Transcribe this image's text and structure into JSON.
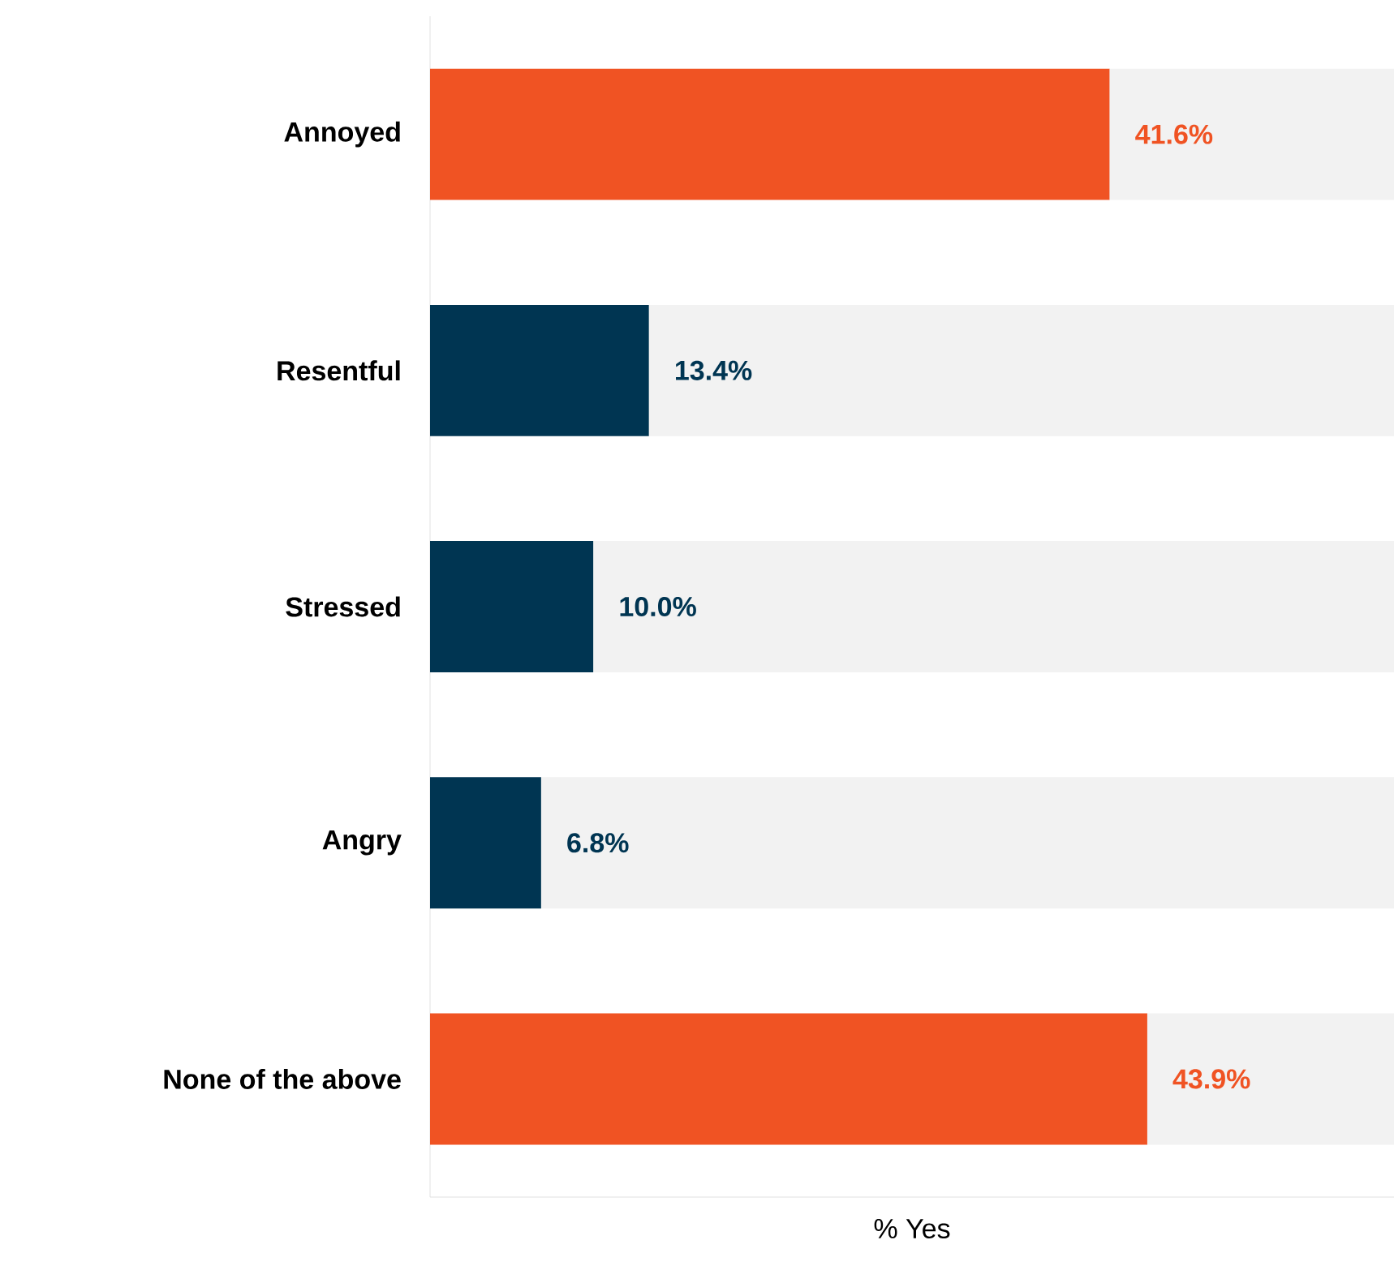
{
  "chart_data": {
    "type": "bar",
    "orientation": "horizontal",
    "stacked": true,
    "xlabel": "% Yes",
    "categories": [
      "Annoyed",
      "Resentful",
      "Stressed",
      "Angry",
      "None of the above"
    ],
    "xlim": [
      0,
      59
    ],
    "series": [
      {
        "colors": [
          "#f05323",
          "#003552",
          "#003552",
          "#003552",
          "#f05323"
        ],
        "values": [
          41.6,
          13.4,
          10.0,
          6.8,
          43.9
        ],
        "value_labels": [
          "41.6%",
          "13.4%",
          "10.0%",
          "6.8%",
          "43.9%"
        ]
      },
      {
        "color": "#f2f2f2",
        "values": [
          17.4,
          45.6,
          49.0,
          52.2,
          15.1
        ]
      }
    ]
  }
}
